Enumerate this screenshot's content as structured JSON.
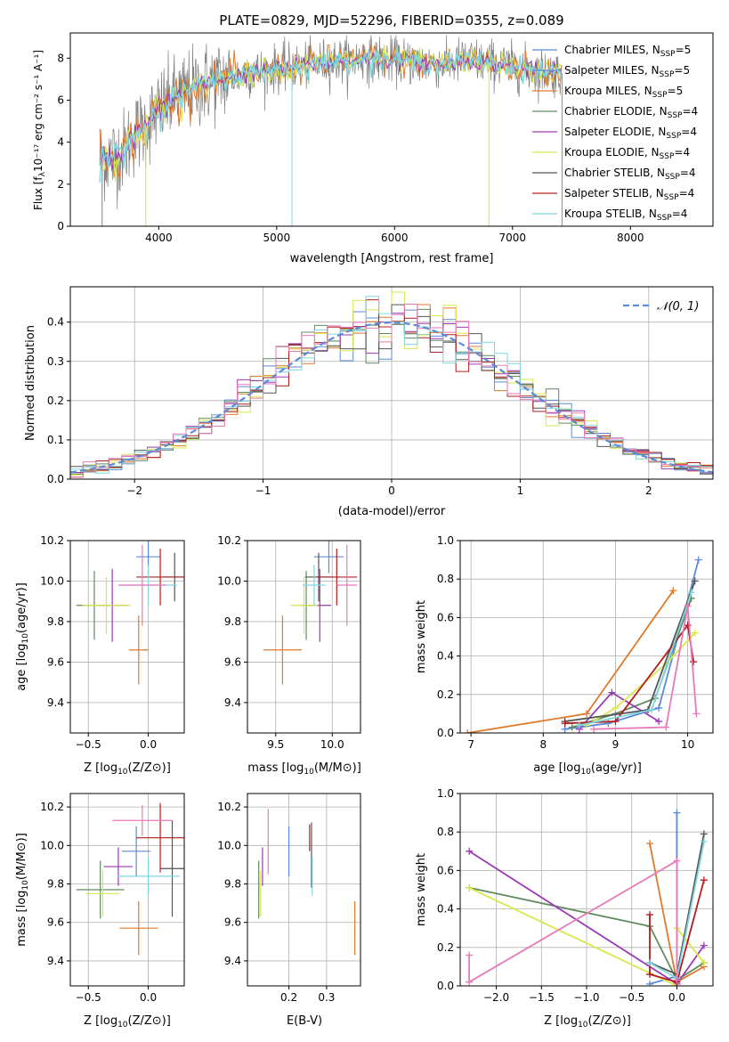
{
  "figure_title": "PLATE=0829, MJD=52296, FIBERID=0355, z=0.089",
  "colors": {
    "chabrier_miles": "#5b8bd8",
    "salpeter_miles": "#5b8bd8",
    "kroupa_miles": "#e0792a",
    "chabrier_elodie": "#5f8b5f",
    "salpeter_elodie": "#9a3ab5",
    "kroupa_elodie": "#d8e84a",
    "chabrier_stelib": "#555555",
    "salpeter_stelib": "#b01d1d",
    "kroupa_stelib": "#7fd6df",
    "pink": "#e87ab8"
  },
  "chart_data": [
    {
      "id": "spectrum",
      "type": "line",
      "title": "PLATE=0829, MJD=52296, FIBERID=0355, z=0.089",
      "xlabel": "wavelength [Angstrom, rest frame]",
      "ylabel_main": "Flux [f",
      "ylabel_sub": "λ",
      "ylabel_rest": "10⁻¹⁷ erg cm⁻² s⁻¹ A⁻¹]",
      "xlim": [
        3250,
        8700
      ],
      "ylim": [
        0,
        9.2
      ],
      "xticks": [
        4000,
        5000,
        6000,
        7000,
        8000
      ],
      "yticks": [
        0,
        2,
        4,
        6,
        8
      ],
      "grid": false,
      "legend_position": "top-right",
      "continuum": {
        "x": [
          3500,
          3600,
          3700,
          3800,
          3900,
          4000,
          4200,
          4400,
          4600,
          4800,
          5000,
          5200,
          5400,
          5600,
          5800,
          6000,
          6200,
          6400,
          6600,
          6800,
          7000,
          7200,
          7400
        ],
        "y": [
          3.2,
          3.3,
          3.6,
          4.4,
          4.8,
          5.6,
          6.3,
          6.8,
          7.1,
          7.3,
          7.5,
          7.6,
          7.8,
          7.9,
          8.0,
          7.9,
          7.8,
          7.7,
          7.9,
          7.8,
          7.6,
          7.4,
          7.3
        ]
      },
      "legend": [
        {
          "name": "Chabrier MILES, N",
          "sub": "SSP",
          "tail": "=5",
          "color_key": "chabrier_miles"
        },
        {
          "name": "Salpeter MILES, N",
          "sub": "SSP",
          "tail": "=5",
          "color_key": "salpeter_miles"
        },
        {
          "name": "Kroupa MILES, N",
          "sub": "SSP",
          "tail": "=5",
          "color_key": "kroupa_miles"
        },
        {
          "name": "Chabrier ELODIE, N",
          "sub": "SSP",
          "tail": "=4",
          "color_key": "chabrier_elodie"
        },
        {
          "name": "Salpeter ELODIE, N",
          "sub": "SSP",
          "tail": "=4",
          "color_key": "salpeter_elodie"
        },
        {
          "name": "Kroupa ELODIE, N",
          "sub": "SSP",
          "tail": "=4",
          "color_key": "kroupa_elodie"
        },
        {
          "name": "Chabrier STELIB, N",
          "sub": "SSP",
          "tail": "=4",
          "color_key": "chabrier_stelib"
        },
        {
          "name": "Salpeter STELIB, N",
          "sub": "SSP",
          "tail": "=4",
          "color_key": "salpeter_stelib"
        },
        {
          "name": "Kroupa STELIB, N",
          "sub": "SSP",
          "tail": "=4",
          "color_key": "kroupa_stelib"
        }
      ]
    },
    {
      "id": "residuals",
      "type": "line",
      "xlabel": "(data-model)/error",
      "ylabel": "Normed distribution",
      "xlim": [
        -2.5,
        2.5
      ],
      "ylim": [
        0,
        0.49
      ],
      "xticks": [
        -2,
        -1,
        0,
        1,
        2
      ],
      "xtick_labels": [
        "−2",
        "−1",
        "0",
        "1",
        "2"
      ],
      "yticks": [
        0.0,
        0.1,
        0.2,
        0.3,
        0.4
      ],
      "ytick_labels": [
        "0.0",
        "0.1",
        "0.2",
        "0.3",
        "0.4"
      ],
      "grid": true,
      "legend_position": "top-right",
      "legend_label": "𝒩(0, 1)",
      "bin_width": 0.1
    },
    {
      "id": "age_vs_Z",
      "type": "scatter",
      "xlabel_main": "Z [log",
      "xlabel_sub": "10",
      "xlabel_rest": "(Z/Z⊙)]",
      "ylabel_main": "age  [log",
      "ylabel_sub": "10",
      "ylabel_rest": "(age/yr)]",
      "xlim": [
        -0.65,
        0.3
      ],
      "ylim": [
        9.25,
        10.2
      ],
      "xticks": [
        -0.5,
        0.0
      ],
      "xtick_labels": [
        "−0.5",
        "0.0"
      ],
      "yticks": [
        9.4,
        9.6,
        9.8,
        10.0,
        10.2
      ],
      "ytick_labels": [
        "9.4",
        "9.6",
        "9.8",
        "10.0",
        "10.2"
      ],
      "grid": true,
      "points": [
        {
          "x": 0.0,
          "xerr": 0.1,
          "y": 10.12,
          "yerr": 0.08,
          "c": "chabrier_miles"
        },
        {
          "x": -0.08,
          "xerr": 0.08,
          "y": 9.66,
          "yerr": 0.17,
          "c": "kroupa_miles"
        },
        {
          "x": -0.45,
          "xerr": 0.15,
          "y": 9.88,
          "yerr": 0.17,
          "c": "chabrier_elodie"
        },
        {
          "x": -0.3,
          "xerr": 0.12,
          "y": 9.88,
          "yerr": 0.18,
          "c": "salpeter_elodie"
        },
        {
          "x": -0.35,
          "xerr": 0.2,
          "y": 9.88,
          "yerr": 0.14,
          "c": "kroupa_elodie"
        },
        {
          "x": 0.22,
          "xerr": 0.1,
          "y": 10.02,
          "yerr": 0.12,
          "c": "chabrier_stelib"
        },
        {
          "x": 0.1,
          "xerr": 0.2,
          "y": 10.02,
          "yerr": 0.14,
          "c": "salpeter_stelib"
        },
        {
          "x": 0.0,
          "xerr": 0.24,
          "y": 9.98,
          "yerr": 0.1,
          "c": "kroupa_stelib"
        },
        {
          "x": -0.05,
          "xerr": 0.2,
          "y": 9.98,
          "yerr": 0.2,
          "c": "pink"
        }
      ]
    },
    {
      "id": "age_vs_mass",
      "type": "scatter",
      "xlabel_main": "mass [log",
      "xlabel_sub": "10",
      "xlabel_rest": "(M/M⊙)]",
      "xlim": [
        9.25,
        10.25
      ],
      "ylim": [
        9.25,
        10.2
      ],
      "xticks": [
        9.5,
        10.0
      ],
      "xtick_labels": [
        "9.5",
        "10.0"
      ],
      "yticks": [
        9.4,
        9.6,
        9.8,
        10.0,
        10.2
      ],
      "ytick_labels": [
        "9.4",
        "9.6",
        "9.8",
        "10.0",
        "10.2"
      ],
      "grid": true,
      "points": [
        {
          "x": 9.97,
          "xerr": 0.13,
          "y": 10.12,
          "yerr": 0.08,
          "c": "chabrier_miles"
        },
        {
          "x": 9.56,
          "xerr": 0.17,
          "y": 9.66,
          "yerr": 0.17,
          "c": "kroupa_miles"
        },
        {
          "x": 9.77,
          "xerr": 0.05,
          "y": 9.88,
          "yerr": 0.17,
          "c": "chabrier_elodie"
        },
        {
          "x": 9.89,
          "xerr": 0.1,
          "y": 9.88,
          "yerr": 0.18,
          "c": "salpeter_elodie"
        },
        {
          "x": 9.75,
          "xerr": 0.12,
          "y": 9.88,
          "yerr": 0.14,
          "c": "kroupa_elodie"
        },
        {
          "x": 9.88,
          "xerr": 0.12,
          "y": 10.02,
          "yerr": 0.12,
          "c": "chabrier_stelib"
        },
        {
          "x": 10.04,
          "xerr": 0.18,
          "y": 10.02,
          "yerr": 0.14,
          "c": "salpeter_stelib"
        },
        {
          "x": 9.84,
          "xerr": 0.1,
          "y": 9.98,
          "yerr": 0.1,
          "c": "kroupa_stelib"
        },
        {
          "x": 10.13,
          "xerr": 0.09,
          "y": 9.98,
          "yerr": 0.2,
          "c": "pink"
        }
      ]
    },
    {
      "id": "mass_weight_vs_age",
      "type": "line",
      "xlabel_main": "age  [log",
      "xlabel_sub": "10",
      "xlabel_rest": "(age/yr)]",
      "ylabel": "mass weight",
      "xlim": [
        6.85,
        10.35
      ],
      "ylim": [
        0,
        1
      ],
      "xticks": [
        7,
        8,
        9,
        10
      ],
      "yticks": [
        0.0,
        0.2,
        0.4,
        0.6,
        0.8,
        1.0
      ],
      "ytick_labels": [
        "0.0",
        "0.2",
        "0.4",
        "0.6",
        "0.8",
        "1.0"
      ],
      "grid": true,
      "series": [
        {
          "c": "chabrier_miles",
          "x": [
            8.3,
            8.9,
            9.6,
            10.15
          ],
          "y": [
            0.02,
            0.05,
            0.13,
            0.9
          ]
        },
        {
          "c": "kroupa_miles",
          "x": [
            6.95,
            8.6,
            9.8
          ],
          "y": [
            0.0,
            0.1,
            0.74
          ]
        },
        {
          "c": "chabrier_elodie",
          "x": [
            8.4,
            9.0,
            9.55,
            10.05
          ],
          "y": [
            0.03,
            0.1,
            0.18,
            0.7
          ]
        },
        {
          "c": "salpeter_elodie",
          "x": [
            8.5,
            8.95,
            9.6
          ],
          "y": [
            0.02,
            0.21,
            0.06
          ]
        },
        {
          "c": "kroupa_elodie",
          "x": [
            8.6,
            9.0,
            9.7,
            10.1
          ],
          "y": [
            0.04,
            0.13,
            0.36,
            0.52
          ]
        },
        {
          "c": "chabrier_stelib",
          "x": [
            8.3,
            9.45,
            10.1
          ],
          "y": [
            0.06,
            0.12,
            0.79
          ]
        },
        {
          "c": "salpeter_stelib",
          "x": [
            8.3,
            9.0,
            10.0,
            10.08
          ],
          "y": [
            0.05,
            0.06,
            0.56,
            0.37
          ]
        },
        {
          "c": "kroupa_stelib",
          "x": [
            8.5,
            9.5,
            10.05
          ],
          "y": [
            0.04,
            0.12,
            0.73
          ]
        },
        {
          "c": "pink",
          "x": [
            8.7,
            9.7,
            10.0,
            10.12
          ],
          "y": [
            0.02,
            0.03,
            0.66,
            0.1
          ]
        }
      ]
    },
    {
      "id": "mass_vs_Z",
      "type": "scatter",
      "xlabel_main": "Z [log",
      "xlabel_sub": "10",
      "xlabel_rest": "(Z/Z⊙)]",
      "ylabel_main": "mass [log",
      "ylabel_sub": "10",
      "ylabel_rest": "(M/M⊙)]",
      "xlim": [
        -0.65,
        0.3
      ],
      "ylim": [
        9.27,
        10.27
      ],
      "xticks": [
        -0.5,
        0.0
      ],
      "xtick_labels": [
        "−0.5",
        "0.0"
      ],
      "yticks": [
        9.4,
        9.6,
        9.8,
        10.0,
        10.2
      ],
      "ytick_labels": [
        "9.4",
        "9.6",
        "9.8",
        "10.0",
        "10.2"
      ],
      "grid": true,
      "points": [
        {
          "x": -0.1,
          "xerr": 0.12,
          "y": 9.97,
          "yerr": 0.13,
          "c": "chabrier_miles"
        },
        {
          "x": -0.08,
          "xerr": 0.16,
          "y": 9.57,
          "yerr": 0.14,
          "c": "kroupa_miles"
        },
        {
          "x": -0.4,
          "xerr": 0.2,
          "y": 9.77,
          "yerr": 0.15,
          "c": "chabrier_elodie"
        },
        {
          "x": -0.25,
          "xerr": 0.12,
          "y": 9.89,
          "yerr": 0.1,
          "c": "salpeter_elodie"
        },
        {
          "x": -0.38,
          "xerr": 0.14,
          "y": 9.75,
          "yerr": 0.12,
          "c": "kroupa_elodie"
        },
        {
          "x": 0.2,
          "xerr": 0.1,
          "y": 9.88,
          "yerr": 0.25,
          "c": "chabrier_stelib"
        },
        {
          "x": 0.1,
          "xerr": 0.2,
          "y": 10.04,
          "yerr": 0.18,
          "c": "salpeter_stelib"
        },
        {
          "x": 0.0,
          "xerr": 0.26,
          "y": 9.84,
          "yerr": 0.1,
          "c": "kroupa_stelib"
        },
        {
          "x": -0.05,
          "xerr": 0.25,
          "y": 10.13,
          "yerr": 0.08,
          "c": "pink"
        }
      ]
    },
    {
      "id": "mass_vs_ebv",
      "type": "scatter",
      "xlabel": "E(B-V)",
      "xlim": [
        0.09,
        0.39
      ],
      "ylim": [
        9.27,
        10.27
      ],
      "xticks": [
        0.2,
        0.3
      ],
      "xtick_labels": [
        "0.2",
        "0.3"
      ],
      "yticks": [
        9.4,
        9.6,
        9.8,
        10.0,
        10.2
      ],
      "ytick_labels": [
        "9.4",
        "9.6",
        "9.8",
        "10.0",
        "10.2"
      ],
      "grid": true,
      "points": [
        {
          "x": 0.2,
          "xerr": 0.001,
          "y": 9.97,
          "yerr": 0.13,
          "c": "chabrier_miles"
        },
        {
          "x": 0.375,
          "xerr": 0.001,
          "y": 9.57,
          "yerr": 0.14,
          "c": "kroupa_miles"
        },
        {
          "x": 0.12,
          "xerr": 0.001,
          "y": 9.77,
          "yerr": 0.15,
          "c": "chabrier_elodie"
        },
        {
          "x": 0.13,
          "xerr": 0.001,
          "y": 9.89,
          "yerr": 0.1,
          "c": "salpeter_elodie"
        },
        {
          "x": 0.125,
          "xerr": 0.001,
          "y": 9.75,
          "yerr": 0.12,
          "c": "kroupa_elodie"
        },
        {
          "x": 0.26,
          "xerr": 0.001,
          "y": 9.95,
          "yerr": 0.17,
          "c": "chabrier_stelib"
        },
        {
          "x": 0.255,
          "xerr": 0.001,
          "y": 10.04,
          "yerr": 0.07,
          "c": "salpeter_stelib"
        },
        {
          "x": 0.262,
          "xerr": 0.001,
          "y": 9.84,
          "yerr": 0.1,
          "c": "kroupa_stelib"
        },
        {
          "x": 0.145,
          "xerr": 0.001,
          "y": 10.02,
          "yerr": 0.17,
          "c": "pink"
        }
      ]
    },
    {
      "id": "mass_weight_vs_Z",
      "type": "line",
      "xlabel_main": "Z [log",
      "xlabel_sub": "10",
      "xlabel_rest": "(Z/Z⊙)]",
      "ylabel": "mass weight",
      "xlim": [
        -2.4,
        0.4
      ],
      "ylim": [
        0,
        1
      ],
      "xticks": [
        -2.0,
        -1.5,
        -1.0,
        -0.5,
        0.0
      ],
      "xtick_labels": [
        "−2.0",
        "−1.5",
        "−1.0",
        "−0.5",
        "0.0"
      ],
      "yticks": [
        0.0,
        0.2,
        0.4,
        0.6,
        0.8,
        1.0
      ],
      "ytick_labels": [
        "0.0",
        "0.2",
        "0.4",
        "0.6",
        "0.8",
        "1.0"
      ],
      "grid": true,
      "series": [
        {
          "c": "chabrier_miles",
          "x": [
            -0.3,
            0.0,
            0.0
          ],
          "y": [
            0.01,
            0.05,
            0.9
          ]
        },
        {
          "c": "kroupa_miles",
          "x": [
            -0.3,
            0.0,
            0.3
          ],
          "y": [
            0.74,
            0.02,
            0.1
          ]
        },
        {
          "c": "chabrier_elodie",
          "x": [
            -2.3,
            -0.3,
            0.0,
            0.3
          ],
          "y": [
            0.51,
            0.31,
            0.03,
            0.12
          ]
        },
        {
          "c": "salpeter_elodie",
          "x": [
            -2.3,
            0.0,
            0.3
          ],
          "y": [
            0.7,
            0.01,
            0.21
          ]
        },
        {
          "c": "kroupa_elodie",
          "x": [
            -2.3,
            0.0,
            0.0,
            0.3
          ],
          "y": [
            0.51,
            0.0,
            0.3,
            0.12
          ]
        },
        {
          "c": "chabrier_stelib",
          "x": [
            -0.3,
            0.0,
            0.3
          ],
          "y": [
            0.12,
            0.06,
            0.79
          ]
        },
        {
          "c": "salpeter_stelib",
          "x": [
            -0.3,
            -0.3,
            0.0,
            0.3
          ],
          "y": [
            0.37,
            0.06,
            0.02,
            0.55
          ]
        },
        {
          "c": "kroupa_stelib",
          "x": [
            -0.3,
            0.0,
            0.3
          ],
          "y": [
            0.12,
            0.04,
            0.75
          ]
        },
        {
          "c": "pink",
          "x": [
            -2.3,
            -2.3,
            0.0,
            0.0
          ],
          "y": [
            0.16,
            0.02,
            0.65,
            0.03
          ]
        }
      ]
    }
  ]
}
